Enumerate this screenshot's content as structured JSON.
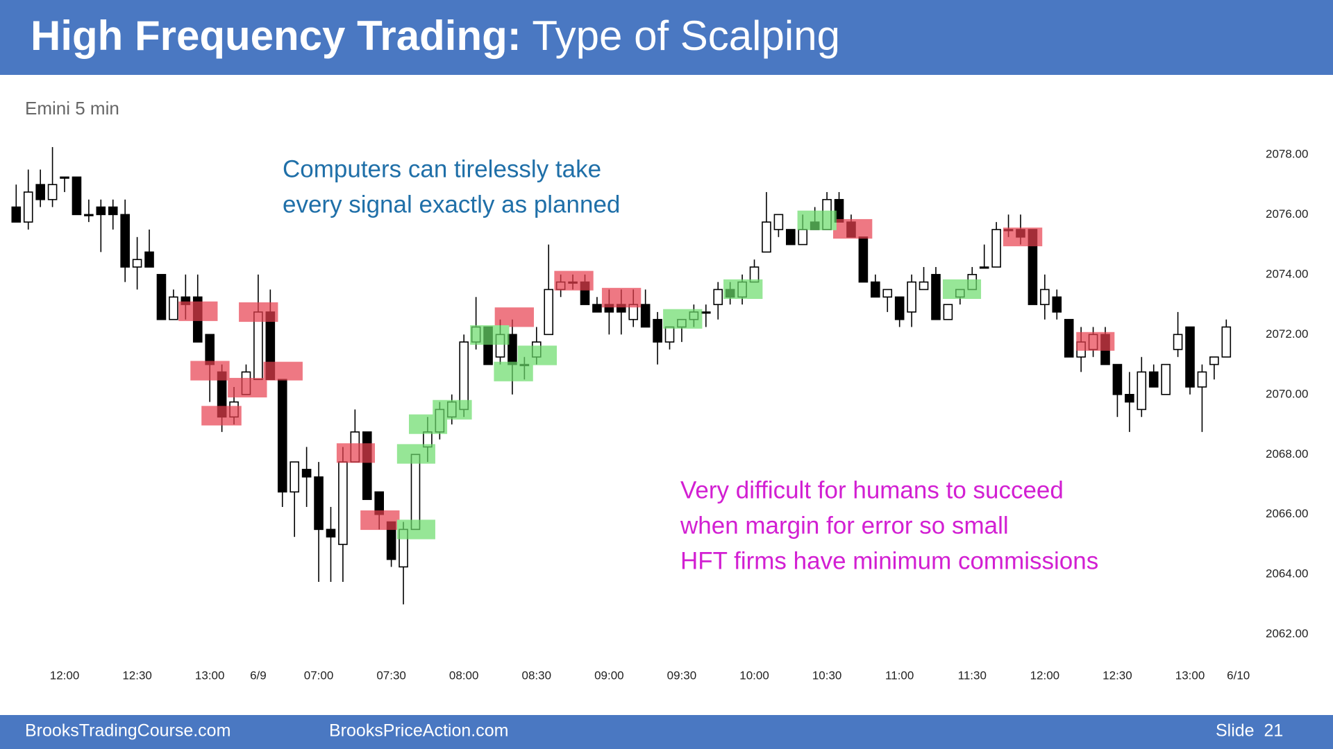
{
  "header": {
    "title_bold": "High Frequency Trading:",
    "title_rest": "Type of Scalping"
  },
  "chart_data": {
    "type": "candlestick",
    "subtitle": "Emini 5 min",
    "annotations_top": [
      "Computers can tirelessly take",
      "every signal exactly as planned"
    ],
    "annotations_bottom": [
      "Very difficult for humans to succeed",
      "when margin for error so small",
      "HFT firms have minimum commissions"
    ],
    "categories": [
      null,
      null,
      null,
      null,
      "12:00",
      null,
      null,
      null,
      null,
      null,
      "12:30",
      null,
      null,
      null,
      null,
      null,
      "13:00",
      null,
      null,
      null,
      "6/9",
      null,
      null,
      null,
      null,
      "07:00",
      null,
      null,
      null,
      null,
      null,
      "07:30",
      null,
      null,
      null,
      null,
      null,
      "08:00",
      null,
      null,
      null,
      null,
      null,
      "08:30",
      null,
      null,
      null,
      null,
      null,
      "09:00",
      null,
      null,
      null,
      null,
      null,
      "09:30",
      null,
      null,
      null,
      null,
      null,
      "10:00",
      null,
      null,
      null,
      null,
      null,
      "10:30",
      null,
      null,
      null,
      null,
      null,
      "11:00",
      null,
      null,
      null,
      null,
      null,
      "11:30",
      null,
      null,
      null,
      null,
      null,
      "12:00",
      null,
      null,
      null,
      null,
      null,
      "12:30",
      null,
      null,
      null,
      null,
      null,
      "13:00",
      null,
      null,
      null,
      "6/10"
    ],
    "open": [
      2076.25,
      2075.75,
      2077.0,
      2076.5,
      2077.25,
      2077.25,
      2076.0,
      2076.25,
      2076.25,
      2076.0,
      2074.25,
      2074.75,
      2074.0,
      2072.5,
      2073.25,
      2073.25,
      2072.0,
      2070.75,
      2069.25,
      2070.0,
      2070.5,
      2072.75,
      2070.5,
      2066.75,
      2067.5,
      2067.25,
      2065.5,
      2065.0,
      2067.75,
      2068.75,
      2066.75,
      2065.75,
      2064.25,
      2065.5,
      2068.25,
      2068.75,
      2069.25,
      2069.5,
      2071.75,
      2072.25,
      2071.25,
      2072.0,
      2071.0,
      2071.25,
      2072.0,
      2073.5,
      2073.75,
      2073.75,
      2073.0,
      2073.0,
      2073.0,
      2072.5,
      2073.0,
      2072.5,
      2071.75,
      2072.25,
      2072.5,
      2072.75,
      2073.0,
      2073.5,
      2073.25,
      2073.75,
      2074.75,
      2075.5,
      2075.5,
      2075.0,
      2075.75,
      2075.5,
      2076.5,
      2075.75,
      2075.25,
      2073.75,
      2073.25,
      2073.25,
      2072.75,
      2073.5,
      2074.0,
      2072.5,
      2073.25,
      2073.5,
      2074.25,
      2074.25,
      2075.5,
      2075.5,
      2075.5,
      2073.0,
      2073.25,
      2072.5,
      2071.25,
      2071.5,
      2072.0,
      2071.0,
      2070.0,
      2069.5,
      2070.75,
      2070.0,
      2071.5,
      2072.25,
      2070.25,
      2071.0,
      2071.25,
      null
    ],
    "high": [
      2077.0,
      2077.5,
      2077.5,
      2078.25,
      2077.25,
      2077.25,
      2076.5,
      2076.5,
      2076.5,
      2076.5,
      2075.25,
      2075.5,
      2074.0,
      2073.5,
      2074.0,
      2074.0,
      2072.0,
      2071.0,
      2070.25,
      2071.0,
      2074.0,
      2073.5,
      2070.5,
      2067.75,
      2068.25,
      2067.75,
      2066.25,
      2068.25,
      2069.5,
      2068.75,
      2066.75,
      2065.75,
      2065.75,
      2068.0,
      2069.25,
      2069.75,
      2070.0,
      2072.0,
      2073.25,
      2072.25,
      2072.5,
      2072.5,
      2071.25,
      2072.25,
      2075.0,
      2074.0,
      2074.0,
      2074.0,
      2073.25,
      2073.5,
      2073.5,
      2073.5,
      2073.5,
      2072.75,
      2072.25,
      2072.5,
      2073.0,
      2073.0,
      2073.75,
      2073.75,
      2074.0,
      2074.5,
      2076.75,
      2076.0,
      2075.5,
      2076.0,
      2076.25,
      2076.75,
      2076.75,
      2076.0,
      2075.25,
      2074.0,
      2073.5,
      2073.25,
      2074.0,
      2074.25,
      2074.25,
      2073.0,
      2073.5,
      2074.25,
      2075.0,
      2075.75,
      2076.0,
      2076.0,
      2075.5,
      2074.0,
      2073.5,
      2072.5,
      2072.25,
      2072.25,
      2072.25,
      2071.0,
      2070.75,
      2071.25,
      2071.0,
      2071.0,
      2072.75,
      2072.25,
      2071.0,
      2071.25,
      2072.5,
      null
    ],
    "low": [
      2075.75,
      2075.5,
      2076.25,
      2076.25,
      2076.75,
      2076.0,
      2075.75,
      2074.75,
      2075.5,
      2073.75,
      2073.5,
      2074.25,
      2072.5,
      2072.5,
      2072.5,
      2071.75,
      2069.75,
      2068.75,
      2069.0,
      2070.0,
      2070.5,
      2070.5,
      2066.25,
      2065.25,
      2066.25,
      2063.75,
      2063.75,
      2063.75,
      2067.75,
      2066.5,
      2065.5,
      2064.25,
      2063.0,
      2065.5,
      2067.75,
      2068.5,
      2069.0,
      2069.25,
      2071.5,
      2071.0,
      2071.0,
      2070.0,
      2070.5,
      2071.0,
      2072.0,
      2073.25,
      2073.5,
      2073.0,
      2072.75,
      2072.0,
      2072.0,
      2072.25,
      2072.25,
      2071.0,
      2071.5,
      2071.75,
      2072.25,
      2072.25,
      2072.5,
      2073.0,
      2073.0,
      2073.75,
      2074.75,
      2075.25,
      2075.0,
      2075.0,
      2075.5,
      2075.5,
      2075.75,
      2075.25,
      2073.75,
      2073.25,
      2072.75,
      2072.25,
      2072.25,
      2073.5,
      2072.5,
      2072.5,
      2073.0,
      2073.5,
      2074.25,
      2074.25,
      2075.25,
      2075.0,
      2073.0,
      2072.5,
      2072.5,
      2071.25,
      2070.75,
      2071.25,
      2071.0,
      2069.25,
      2068.75,
      2069.25,
      2070.25,
      2070.0,
      2071.25,
      2070.0,
      2068.75,
      2070.5,
      2071.25,
      null
    ],
    "close": [
      2075.75,
      2076.75,
      2076.5,
      2077.0,
      2077.25,
      2076.0,
      2076.0,
      2076.0,
      2076.0,
      2074.25,
      2074.5,
      2074.25,
      2072.5,
      2073.25,
      2073.0,
      2071.75,
      2071.0,
      2069.25,
      2069.75,
      2070.75,
      2072.75,
      2070.5,
      2066.75,
      2067.75,
      2067.25,
      2065.5,
      2065.25,
      2067.75,
      2068.75,
      2066.5,
      2066.0,
      2064.5,
      2065.5,
      2068.0,
      2068.75,
      2069.5,
      2069.75,
      2071.75,
      2072.25,
      2071.0,
      2072.0,
      2071.0,
      2071.0,
      2071.75,
      2073.5,
      2073.75,
      2073.75,
      2073.0,
      2072.75,
      2072.75,
      2072.75,
      2073.0,
      2072.25,
      2071.75,
      2072.25,
      2072.5,
      2072.75,
      2072.75,
      2073.5,
      2073.25,
      2073.75,
      2074.25,
      2075.75,
      2076.0,
      2075.0,
      2075.5,
      2075.5,
      2076.5,
      2075.75,
      2075.25,
      2073.75,
      2073.25,
      2073.5,
      2072.5,
      2073.75,
      2073.75,
      2072.5,
      2073.0,
      2073.5,
      2074.0,
      2074.25,
      2075.5,
      2075.5,
      2075.25,
      2073.0,
      2073.5,
      2072.75,
      2071.25,
      2071.75,
      2072.0,
      2071.0,
      2070.0,
      2069.75,
      2070.75,
      2070.25,
      2071.0,
      2072.0,
      2070.25,
      2070.75,
      2071.25,
      2072.25,
      null
    ],
    "up_color": "#ffffff",
    "down_color": "#000000",
    "ylim": [
      2062,
      2078
    ],
    "yticks": [
      {
        "value": 2078,
        "label": "2078.00"
      },
      {
        "value": 2076,
        "label": "2076.00"
      },
      {
        "value": 2074,
        "label": "2074.00"
      },
      {
        "value": 2072,
        "label": "2072.00"
      },
      {
        "value": 2070,
        "label": "2070.00"
      },
      {
        "value": 2068,
        "label": "2068.00"
      },
      {
        "value": 2066,
        "label": "2066.00"
      },
      {
        "value": 2064,
        "label": "2064.00"
      },
      {
        "value": 2062,
        "label": "2062.00"
      }
    ]
  },
  "footer": {
    "left": "BrooksTradingCourse.com",
    "center": "BrooksPriceAction.com",
    "right": "Slide  21"
  }
}
